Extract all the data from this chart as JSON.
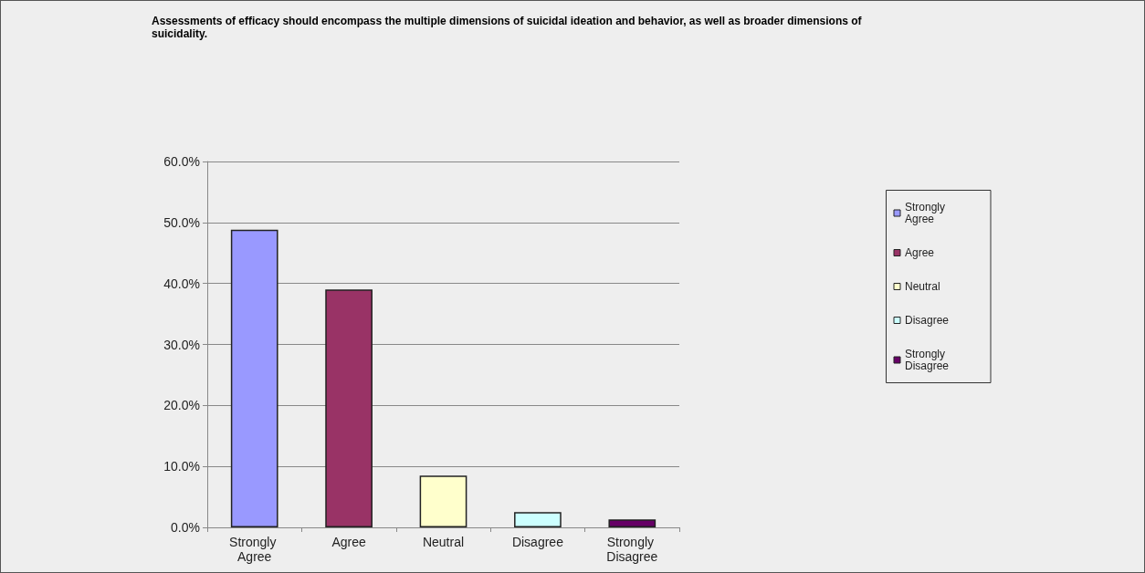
{
  "chart_data": {
    "type": "bar",
    "title": "Assessments of efficacy should encompass the multiple dimensions of suicidal ideation and behavior, as well as broader dimensions of suicidality.",
    "categories": [
      "Strongly Agree",
      "Agree",
      "Neutral",
      "Disagree",
      "Strongly Disagree"
    ],
    "series": [
      {
        "name": "Strongly Agree",
        "color": "#9999ff",
        "values": [
          48.8,
          null,
          null,
          null,
          null
        ]
      },
      {
        "name": "Agree",
        "color": "#993366",
        "values": [
          null,
          39.0,
          null,
          null,
          null
        ]
      },
      {
        "name": "Neutral",
        "color": "#ffffcc",
        "values": [
          null,
          null,
          8.5,
          null,
          null
        ]
      },
      {
        "name": "Disagree",
        "color": "#ccffff",
        "values": [
          null,
          null,
          null,
          2.5,
          null
        ]
      },
      {
        "name": "Strongly Disagree",
        "color": "#660066",
        "values": [
          null,
          null,
          null,
          null,
          1.3
        ]
      }
    ],
    "ylim": [
      0,
      60
    ],
    "yticks": [
      {
        "value": 0,
        "label": "0.0%"
      },
      {
        "value": 10,
        "label": "10.0%"
      },
      {
        "value": 20,
        "label": "20.0%"
      },
      {
        "value": 30,
        "label": "30.0%"
      },
      {
        "value": 40,
        "label": "40.0%"
      },
      {
        "value": 50,
        "label": "50.0%"
      },
      {
        "value": 60,
        "label": "60.0%"
      }
    ],
    "grid": "y",
    "legend": "right"
  }
}
